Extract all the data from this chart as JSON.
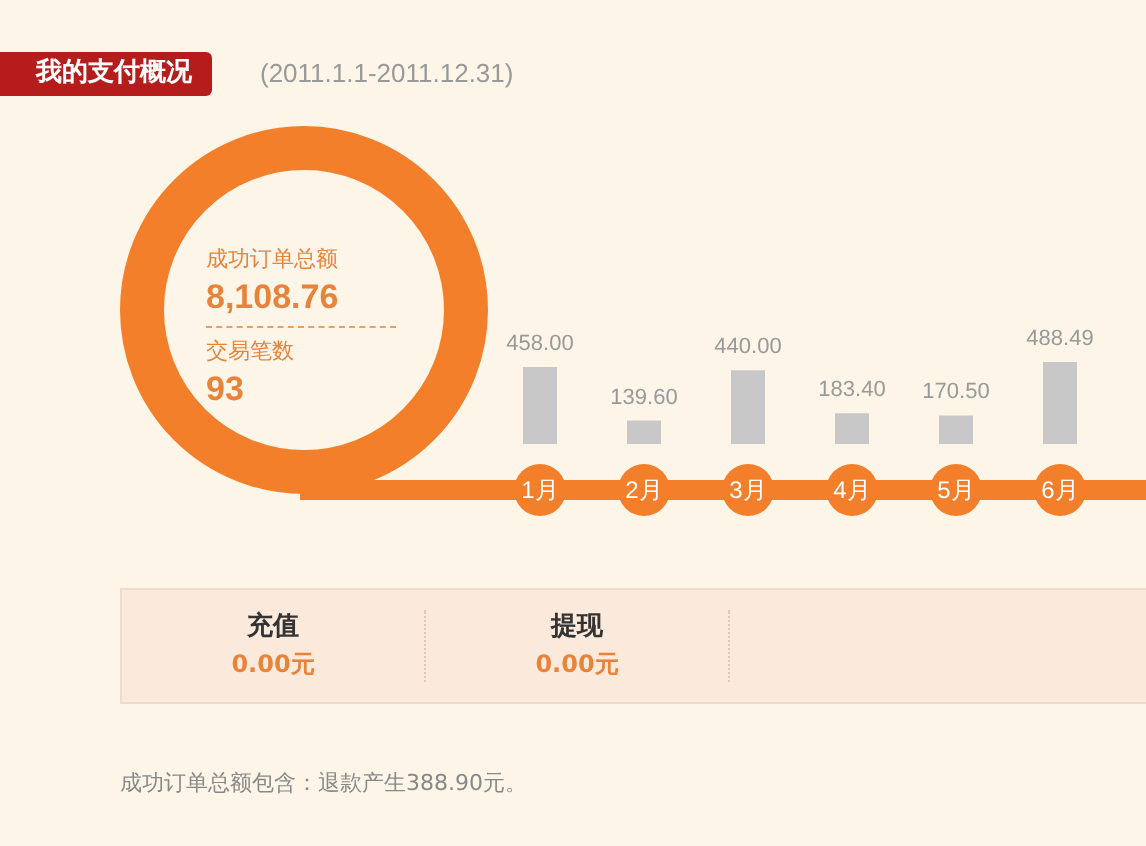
{
  "chart_data": {
    "type": "bar",
    "title": "我的支付概况",
    "subtitle": "(2011.1.1-2011.12.31)",
    "categories": [
      "1月",
      "2月",
      "3月",
      "4月",
      "5月",
      "6月"
    ],
    "values": [
      458.0,
      139.6,
      440.0,
      183.4,
      170.5,
      488.49
    ],
    "color": "#c8c8c8",
    "value_labels": [
      "458.00",
      "139.60",
      "440.00",
      "183.40",
      "170.50",
      "488.49"
    ],
    "grid": false,
    "annotations": [
      "成功订单总额",
      "8,108.76",
      "交易笔数",
      "93",
      "充值",
      "0.00元",
      "提现",
      "0.00元",
      "成功订单总额包含：退款产生388.90元。"
    ]
  }
}
